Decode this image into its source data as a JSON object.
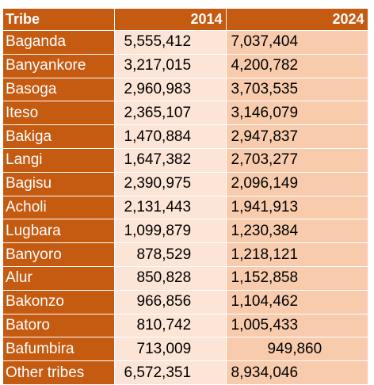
{
  "table": {
    "headers": [
      "Tribe",
      "2014",
      "2024"
    ],
    "rows": [
      {
        "tribe": "Baganda",
        "y2014": "5,555,412",
        "y2024": "7,037,404"
      },
      {
        "tribe": "Banyankore",
        "y2014": "3,217,015",
        "y2024": "4,200,782"
      },
      {
        "tribe": "Basoga",
        "y2014": "2,960,983",
        "y2024": "3,703,535"
      },
      {
        "tribe": "Iteso",
        "y2014": "2,365,107",
        "y2024": "3,146,079"
      },
      {
        "tribe": "Bakiga",
        "y2014": "1,470,884",
        "y2024": "2,947,837"
      },
      {
        "tribe": "Langi",
        "y2014": "1,647,382",
        "y2024": "2,703,277"
      },
      {
        "tribe": "Bagisu",
        "y2014": "2,390,975",
        "y2024": "2,096,149"
      },
      {
        "tribe": "Acholi",
        "y2014": "2,131,443",
        "y2024": "1,941,913"
      },
      {
        "tribe": "Lugbara",
        "y2014": "1,099,879",
        "y2024": "1,230,384"
      },
      {
        "tribe": "Banyoro",
        "y2014": "878,529",
        "y2024": "1,218,121"
      },
      {
        "tribe": "Alur",
        "y2014": "850,828",
        "y2024": "1,152,858"
      },
      {
        "tribe": "Bakonzo",
        "y2014": "966,856",
        "y2024": "1,104,462"
      },
      {
        "tribe": "Batoro",
        "y2014": "810,742",
        "y2024": "1,005,433"
      },
      {
        "tribe": "Bafumbira",
        "y2014": "713,009",
        "y2024": "949,860"
      },
      {
        "tribe": "Other tribes",
        "y2014": "6,572,351",
        "y2024": "8,934,046"
      }
    ]
  },
  "colors": {
    "header_bg": "#c55a11",
    "header_text": "#ffffff",
    "col_2014_bg": "#fce4d6",
    "col_2024_bg": "#f8cbad"
  }
}
